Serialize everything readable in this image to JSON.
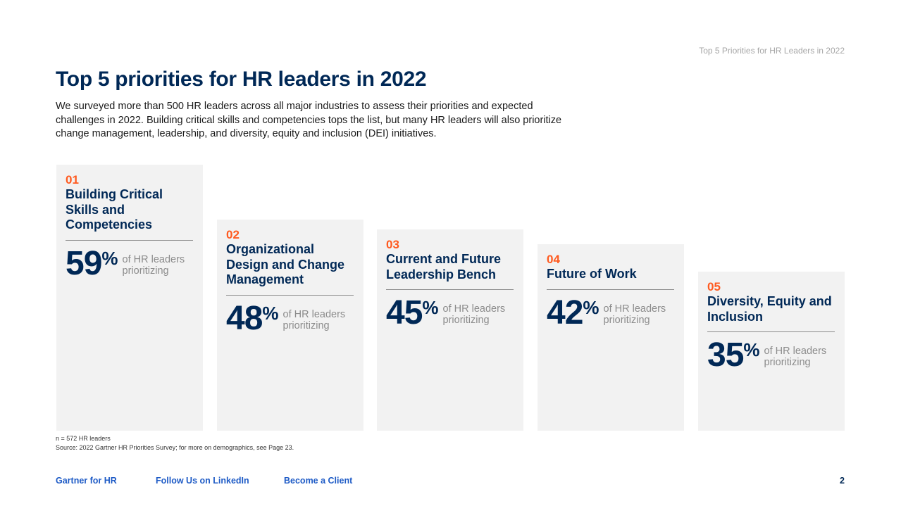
{
  "header": {
    "running_title": "Top 5 Priorities for HR Leaders in 2022"
  },
  "main": {
    "title": "Top 5 priorities for HR leaders in 2022",
    "intro": "We surveyed more than 500 HR leaders across all major industries to assess their priorities and expected challenges in 2022. Building critical skills and competencies tops the list, but many HR leaders will also prioritize change management, leadership, and diversity, equity and inclusion (DEI) initiatives."
  },
  "priorities": [
    {
      "number": "01",
      "name": "Building Critical Skills and Competencies",
      "value": "59",
      "sign": "%",
      "label": "of HR leaders prioritizing"
    },
    {
      "number": "02",
      "name": "Organizational Design and Change Management",
      "value": "48",
      "sign": "%",
      "label": "of HR leaders prioritizing"
    },
    {
      "number": "03",
      "name": "Current and Future Leadership Bench",
      "value": "45",
      "sign": "%",
      "label": "of HR leaders prioritizing"
    },
    {
      "number": "04",
      "name": "Future of Work",
      "value": "42",
      "sign": "%",
      "label": "of HR leaders prioritizing"
    },
    {
      "number": "05",
      "name": "Diversity, Equity and Inclusion",
      "value": "35",
      "sign": "%",
      "label": "of HR leaders prioritizing"
    }
  ],
  "footnote": {
    "sample": "n = 572 HR leaders",
    "source": "Source: 2022 Gartner HR Priorities Survey; for more on demographics, see Page 23."
  },
  "footer": {
    "links": [
      "Gartner for HR",
      "Follow Us on LinkedIn",
      "Become a Client"
    ],
    "page_number": "2"
  },
  "colors": {
    "navy": "#002856",
    "orange": "#ff5a1f",
    "link_blue": "#1e5bc6",
    "card_bg": "#f2f2f2"
  }
}
